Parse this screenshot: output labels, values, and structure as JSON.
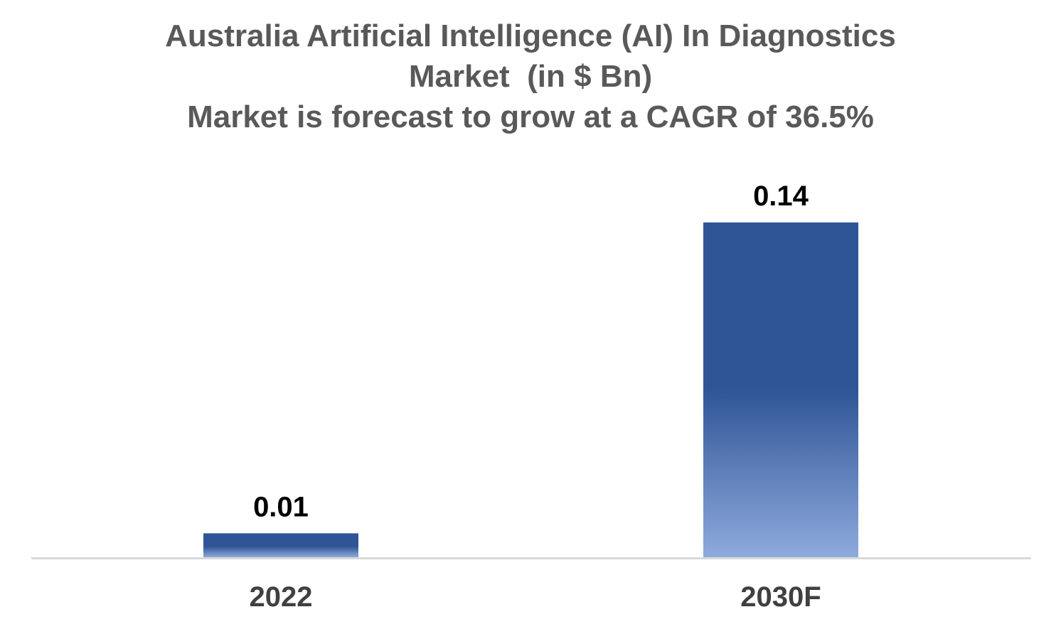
{
  "chart_data": {
    "type": "bar",
    "title": "Australia Artificial Intelligence (AI) In Diagnostics Market  (in $ Bn)",
    "title_lines": [
      "Australia Artificial Intelligence (AI) In Diagnostics",
      "Market  (in $ Bn)",
      "Market is forecast to grow at a CAGR of 36.5%"
    ],
    "subtitle": "Market is forecast to grow at a CAGR of 36.5%",
    "categories": [
      "2022",
      "2030F"
    ],
    "values": [
      0.01,
      0.14
    ],
    "data_labels": [
      "0.01",
      "0.14"
    ],
    "xlabel": "",
    "ylabel": "",
    "ylim": [
      0,
      0.15
    ],
    "grid": false,
    "legend": "none",
    "colors": {
      "bar_top": "#2f5597",
      "bar_bottom": "#8faadc",
      "axis": "#d9d9d9",
      "title": "#595959",
      "tick": "#404040",
      "data_label": "#000000"
    }
  }
}
